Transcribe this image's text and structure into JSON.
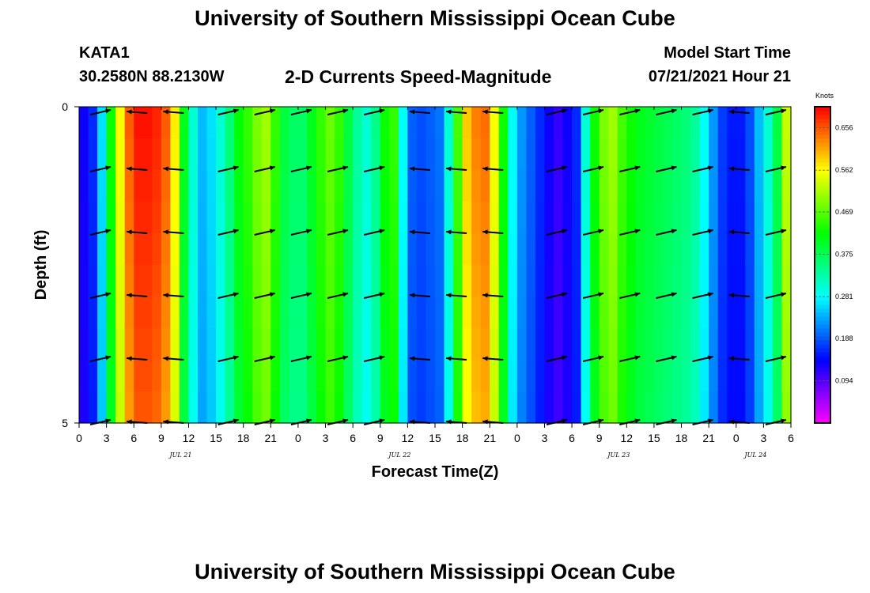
{
  "header": {
    "site_title": "University of Southern Mississippi Ocean Cube",
    "station": "KATA1",
    "coords": "30.2580N  88.2130W",
    "model_label": "Model Start Time",
    "model_time": "07/21/2021 Hour 21",
    "footer_title": "University of Southern Mississippi Ocean Cube"
  },
  "chart_data": {
    "type": "heatmap",
    "title": "2-D Currents Speed-Magnitude",
    "xlabel": "Forecast Time(Z)",
    "ylabel": "Depth (ft)",
    "x_unit": "hours from 0Z Jul 21",
    "xlim": [
      0,
      78
    ],
    "ylim": [
      0,
      5
    ],
    "y_ticks": [
      {
        "value": 0,
        "label": "0"
      },
      {
        "value": 5,
        "label": "5"
      }
    ],
    "x_ticks": [
      {
        "value": 0,
        "label": "0"
      },
      {
        "value": 3,
        "label": "3"
      },
      {
        "value": 6,
        "label": "6"
      },
      {
        "value": 9,
        "label": "9"
      },
      {
        "value": 12,
        "label": "12"
      },
      {
        "value": 15,
        "label": "15"
      },
      {
        "value": 18,
        "label": "18"
      },
      {
        "value": 21,
        "label": "21"
      },
      {
        "value": 24,
        "label": "0"
      },
      {
        "value": 27,
        "label": "3"
      },
      {
        "value": 30,
        "label": "6"
      },
      {
        "value": 33,
        "label": "9"
      },
      {
        "value": 36,
        "label": "12"
      },
      {
        "value": 39,
        "label": "15"
      },
      {
        "value": 42,
        "label": "18"
      },
      {
        "value": 45,
        "label": "21"
      },
      {
        "value": 48,
        "label": "0"
      },
      {
        "value": 51,
        "label": "3"
      },
      {
        "value": 54,
        "label": "6"
      },
      {
        "value": 57,
        "label": "9"
      },
      {
        "value": 60,
        "label": "12"
      },
      {
        "value": 63,
        "label": "15"
      },
      {
        "value": 66,
        "label": "18"
      },
      {
        "value": 69,
        "label": "21"
      },
      {
        "value": 72,
        "label": "0"
      },
      {
        "value": 75,
        "label": "3"
      },
      {
        "value": 78,
        "label": "6"
      }
    ],
    "date_labels": [
      {
        "value": 12,
        "label": "JUL 21"
      },
      {
        "value": 36,
        "label": "JUL 22"
      },
      {
        "value": 60,
        "label": "JUL 23"
      },
      {
        "value": 75,
        "label": "JUL 24"
      }
    ],
    "colorbar": {
      "unit": "Knots",
      "min": 0,
      "max": 0.703,
      "ticks": [
        0.094,
        0.188,
        0.281,
        0.375,
        0.469,
        0.562,
        0.656
      ],
      "tick_labels": [
        "0.094",
        "0.188",
        "0.281",
        "0.375",
        "0.469",
        "0.562",
        "0.656"
      ]
    },
    "speed_profile": {
      "hours": [
        0,
        1,
        2,
        3,
        4,
        5,
        6,
        7,
        8,
        9,
        10,
        11,
        12,
        13,
        14,
        15,
        16,
        17,
        18,
        19,
        20,
        21,
        22,
        23,
        24,
        25,
        26,
        27,
        28,
        29,
        30,
        31,
        32,
        33,
        34,
        35,
        36,
        37,
        38,
        39,
        40,
        41,
        42,
        43,
        44,
        45,
        46,
        47,
        48,
        49,
        50,
        51,
        52,
        53,
        54,
        55,
        56,
        57,
        58,
        59,
        60,
        61,
        62,
        63,
        64,
        65,
        66,
        67,
        68,
        69,
        70,
        71,
        72,
        73,
        74,
        75,
        76,
        77
      ],
      "speed_knots": [
        0.13,
        0.16,
        0.26,
        0.42,
        0.55,
        0.64,
        0.68,
        0.68,
        0.67,
        0.64,
        0.56,
        0.4,
        0.3,
        0.24,
        0.26,
        0.3,
        0.35,
        0.41,
        0.44,
        0.48,
        0.5,
        0.44,
        0.38,
        0.36,
        0.36,
        0.4,
        0.44,
        0.47,
        0.44,
        0.38,
        0.33,
        0.3,
        0.34,
        0.42,
        0.44,
        0.28,
        0.19,
        0.18,
        0.19,
        0.2,
        0.3,
        0.45,
        0.58,
        0.62,
        0.63,
        0.55,
        0.42,
        0.28,
        0.22,
        0.19,
        0.16,
        0.13,
        0.11,
        0.13,
        0.16,
        0.3,
        0.42,
        0.48,
        0.5,
        0.45,
        0.42,
        0.4,
        0.39,
        0.38,
        0.37,
        0.36,
        0.35,
        0.33,
        0.28,
        0.22,
        0.17,
        0.15,
        0.15,
        0.18,
        0.24,
        0.3,
        0.38,
        0.52
      ]
    },
    "vectors": {
      "hours": [
        2,
        6,
        10,
        16,
        20,
        24,
        28,
        32,
        37,
        41,
        45,
        52,
        56,
        60,
        64,
        68,
        72,
        76
      ],
      "depths": [
        0.1,
        1.0,
        2.0,
        3.0,
        4.0,
        5.0
      ],
      "direction": [
        "right",
        "left",
        "left",
        "right",
        "right",
        "right",
        "right",
        "right",
        "left",
        "left",
        "left",
        "right",
        "right",
        "right",
        "right",
        "right",
        "left",
        "right"
      ]
    }
  }
}
